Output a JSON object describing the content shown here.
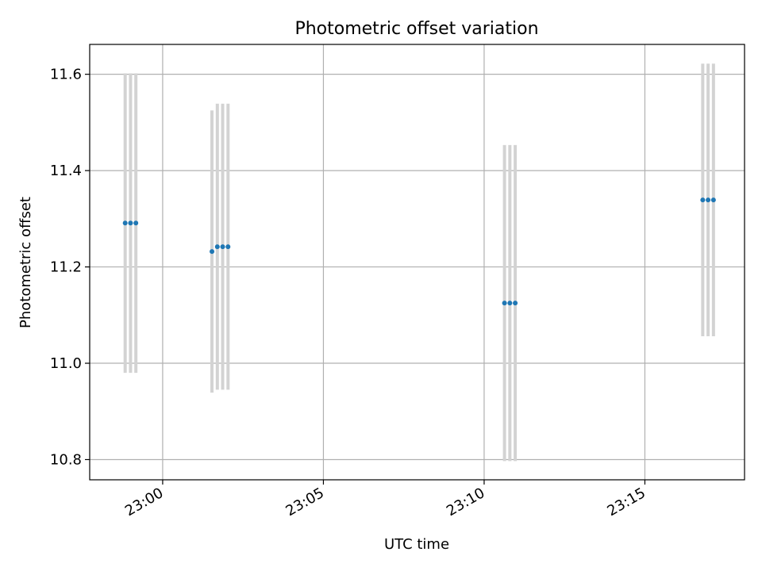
{
  "chart_data": {
    "type": "scatter",
    "title": "Photometric offset variation",
    "xlabel": "UTC time",
    "ylabel": "Photometric offset",
    "x_ticks": [
      "23:00",
      "23:05",
      "23:10",
      "23:15"
    ],
    "y_ticks": [
      "10.8",
      "11.0",
      "11.2",
      "11.4",
      "11.6"
    ],
    "y_tick_values": [
      10.8,
      11.0,
      11.2,
      11.4,
      11.6
    ],
    "xlim_minutes_after_2300": [
      -2.27,
      18.1
    ],
    "ylim": [
      10.758,
      11.662
    ],
    "grid": true,
    "marker_color": "#1f77b4",
    "errorbar_color": "#d3d3d3",
    "points": [
      {
        "time": "22:58:50",
        "value": 11.291,
        "error": 0.311
      },
      {
        "time": "22:59:00",
        "value": 11.291,
        "error": 0.311
      },
      {
        "time": "22:59:10",
        "value": 11.291,
        "error": 0.311
      },
      {
        "time": "23:01:32",
        "value": 11.232,
        "error": 0.293
      },
      {
        "time": "23:01:42",
        "value": 11.242,
        "error": 0.297
      },
      {
        "time": "23:01:52",
        "value": 11.242,
        "error": 0.297
      },
      {
        "time": "23:02:02",
        "value": 11.242,
        "error": 0.297
      },
      {
        "time": "23:10:38",
        "value": 11.125,
        "error": 0.328
      },
      {
        "time": "23:10:48",
        "value": 11.125,
        "error": 0.328
      },
      {
        "time": "23:10:58",
        "value": 11.125,
        "error": 0.328
      },
      {
        "time": "23:16:48",
        "value": 11.339,
        "error": 0.283
      },
      {
        "time": "23:16:58",
        "value": 11.339,
        "error": 0.283
      },
      {
        "time": "23:17:08",
        "value": 11.339,
        "error": 0.283
      }
    ]
  }
}
